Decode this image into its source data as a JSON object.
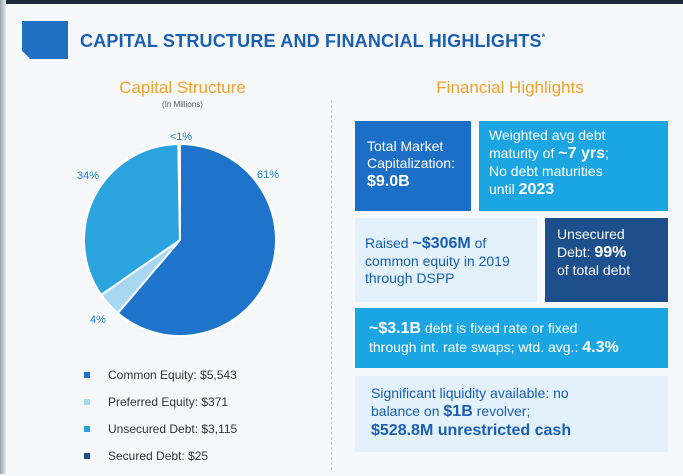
{
  "header": {
    "title": "CAPITAL STRUCTURE AND FINANCIAL HIGHLIGHTS",
    "title_mark": "*"
  },
  "colors": {
    "common": "#1e74cb",
    "preferred": "#a8d7f2",
    "unsecured": "#2aa3df",
    "secured": "#1d4f8c",
    "accent": "#f0a328"
  },
  "chart_data": {
    "type": "pie",
    "title": "Capital Structure",
    "subtitle": "(In Millions)",
    "slices": [
      {
        "name": "Common Equity",
        "value": 5543,
        "percent_label": "61%",
        "color": "#1e74cb"
      },
      {
        "name": "Preferred Equity",
        "value": 371,
        "percent_label": "4%",
        "color": "#a8d7f2"
      },
      {
        "name": "Unsecured Debt",
        "value": 3115,
        "percent_label": "34%",
        "color": "#2aa3df"
      },
      {
        "name": "Secured Debt",
        "value": 25,
        "percent_label": "<1%",
        "color": "#1d4f8c"
      }
    ],
    "legend": [
      "Common Equity: $5,543",
      "Preferred Equity: $371",
      "Unsecured Debt: $3,115",
      "Secured Debt: $25"
    ],
    "legend_position": "bottom"
  },
  "highlights": {
    "title": "Financial Highlights",
    "box1": {
      "l1": "Total Market",
      "l2": "Capitalization:",
      "v": "$9.0B"
    },
    "box2": {
      "l1": "Weighted avg debt",
      "l2a": "maturity of ",
      "v": "~7 yrs",
      "l2b": ";",
      "l3": "No debt maturities",
      "l4a": "until ",
      "v2": "2023"
    },
    "box3": {
      "l1a": "Raised ",
      "v": "~$306M",
      "l1b": " of",
      "l2": "common equity in 2019",
      "l3": "through DSPP"
    },
    "box4": {
      "l1": "Unsecured",
      "l2a": "Debt: ",
      "v": "99%",
      "l3": "of total debt"
    },
    "box5": {
      "v": "~$3.1B",
      "l1b": " debt is fixed rate or fixed",
      "l2a": "through int. rate swaps; wtd. avg.: ",
      "v2": "4.3%"
    },
    "box6": {
      "l1": "Significant liquidity available: no",
      "l2a": "balance on ",
      "v": "$1B",
      "l2b": " revolver;",
      "l3": "$528.8M unrestricted cash"
    }
  }
}
